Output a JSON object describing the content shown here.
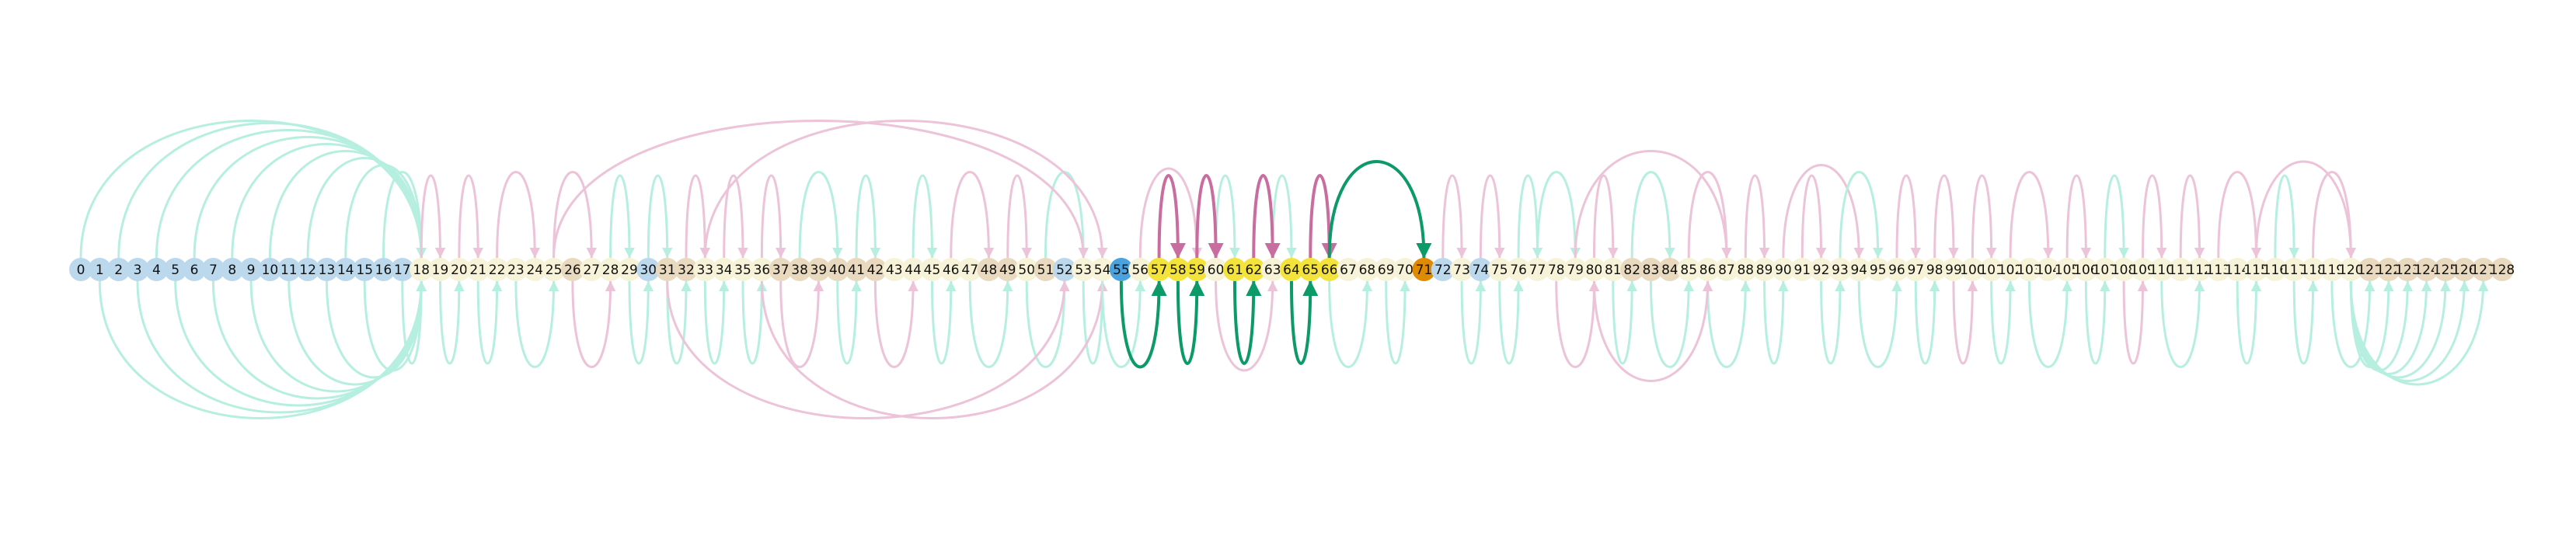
{
  "diagram": {
    "type": "arc-diagram",
    "node_labels": [
      "0",
      "1",
      "2",
      "3",
      "4",
      "5",
      "6",
      "7",
      "8",
      "9",
      "10",
      "11",
      "12",
      "13",
      "14",
      "15",
      "16",
      "17",
      "18",
      "19",
      "20",
      "21",
      "22",
      "23",
      "24",
      "25",
      "26",
      "27",
      "28",
      "29",
      "30",
      "31",
      "32",
      "33",
      "34",
      "35",
      "36",
      "37",
      "38",
      "39",
      "40",
      "41",
      "42",
      "43",
      "44",
      "45",
      "46",
      "47",
      "48",
      "49",
      "50",
      "51",
      "52",
      "53",
      "54",
      "55",
      "56",
      "57",
      "58",
      "59",
      "60",
      "61",
      "62",
      "63",
      "64",
      "65",
      "66",
      "67",
      "68",
      "69",
      "70",
      "71",
      "72",
      "73",
      "74",
      "75",
      "76",
      "77",
      "78",
      "79",
      "80",
      "81",
      "82",
      "83",
      "84",
      "85",
      "86",
      "87",
      "88",
      "89",
      "90",
      "91",
      "92",
      "93",
      "94",
      "95",
      "96",
      "97",
      "98",
      "99",
      "100",
      "101",
      "102",
      "103",
      "104",
      "105",
      "106",
      "107",
      "108",
      "109",
      "110",
      "111",
      "112",
      "113",
      "114",
      "115",
      "116",
      "117",
      "118",
      "119",
      "120",
      "121",
      "122",
      "123",
      "124",
      "125",
      "126",
      "127",
      "128"
    ],
    "node_colors": {
      "blue_light": "#bcd8ec",
      "blue_focus": "#4aa3df",
      "cream": "#f7f3d8",
      "tan": "#e8d9bf",
      "yellow": "#f3e33a",
      "orange": "#e08a00"
    },
    "node_groups": {
      "blue_light": [
        0,
        1,
        2,
        3,
        4,
        5,
        6,
        7,
        8,
        9,
        10,
        11,
        12,
        13,
        14,
        15,
        16,
        17,
        30,
        52,
        72,
        74
      ],
      "blue_focus": [
        55
      ],
      "yellow": [
        57,
        58,
        59,
        61,
        62,
        64,
        65,
        66
      ],
      "orange": [
        71
      ],
      "tan": [
        26,
        31,
        32,
        37,
        38,
        39,
        40,
        41,
        42,
        48,
        49,
        51,
        82,
        83,
        84,
        121,
        122,
        123,
        124,
        125,
        126,
        127,
        128
      ]
    },
    "edge_colors": {
      "faint_green": "#b6efdf",
      "faint_pink": "#ecc3d8",
      "strong_green": "#0c9a68",
      "strong_pink": "#c96c9f"
    },
    "highlighted_edges": [
      {
        "from": 57,
        "to": 58,
        "side": "above",
        "color": "strong_pink"
      },
      {
        "from": 59,
        "to": 60,
        "side": "above",
        "color": "strong_pink"
      },
      {
        "from": 62,
        "to": 63,
        "side": "above",
        "color": "strong_pink"
      },
      {
        "from": 65,
        "to": 66,
        "side": "above",
        "color": "strong_pink"
      },
      {
        "from": 66,
        "to": 71,
        "side": "above",
        "color": "strong_green"
      },
      {
        "from": 55,
        "to": 57,
        "side": "below",
        "color": "strong_green"
      },
      {
        "from": 58,
        "to": 59,
        "side": "below",
        "color": "strong_green"
      },
      {
        "from": 61,
        "to": 62,
        "side": "below",
        "color": "strong_green"
      },
      {
        "from": 64,
        "to": 65,
        "side": "below",
        "color": "strong_green"
      }
    ],
    "background_edges": [
      {
        "from": 0,
        "to": 18,
        "side": "above",
        "color": "faint_green"
      },
      {
        "from": 2,
        "to": 18,
        "side": "above",
        "color": "faint_green"
      },
      {
        "from": 4,
        "to": 18,
        "side": "above",
        "color": "faint_green"
      },
      {
        "from": 6,
        "to": 18,
        "side": "above",
        "color": "faint_green"
      },
      {
        "from": 8,
        "to": 18,
        "side": "above",
        "color": "faint_green"
      },
      {
        "from": 10,
        "to": 18,
        "side": "above",
        "color": "faint_green"
      },
      {
        "from": 12,
        "to": 18,
        "side": "above",
        "color": "faint_green"
      },
      {
        "from": 14,
        "to": 18,
        "side": "above",
        "color": "faint_green"
      },
      {
        "from": 16,
        "to": 18,
        "side": "above",
        "color": "faint_green"
      },
      {
        "from": 1,
        "to": 18,
        "side": "below",
        "color": "faint_green"
      },
      {
        "from": 3,
        "to": 18,
        "side": "below",
        "color": "faint_green"
      },
      {
        "from": 5,
        "to": 18,
        "side": "below",
        "color": "faint_green"
      },
      {
        "from": 7,
        "to": 18,
        "side": "below",
        "color": "faint_green"
      },
      {
        "from": 9,
        "to": 18,
        "side": "below",
        "color": "faint_green"
      },
      {
        "from": 11,
        "to": 18,
        "side": "below",
        "color": "faint_green"
      },
      {
        "from": 13,
        "to": 18,
        "side": "below",
        "color": "faint_green"
      },
      {
        "from": 15,
        "to": 18,
        "side": "below",
        "color": "faint_green"
      },
      {
        "from": 17,
        "to": 18,
        "side": "below",
        "color": "faint_green"
      },
      {
        "from": 18,
        "to": 19,
        "side": "above",
        "color": "faint_pink"
      },
      {
        "from": 20,
        "to": 21,
        "side": "above",
        "color": "faint_pink"
      },
      {
        "from": 22,
        "to": 24,
        "side": "above",
        "color": "faint_pink"
      },
      {
        "from": 25,
        "to": 27,
        "side": "above",
        "color": "faint_pink"
      },
      {
        "from": 28,
        "to": 29,
        "side": "above",
        "color": "faint_green"
      },
      {
        "from": 30,
        "to": 31,
        "side": "above",
        "color": "faint_green"
      },
      {
        "from": 32,
        "to": 33,
        "side": "above",
        "color": "faint_pink"
      },
      {
        "from": 34,
        "to": 35,
        "side": "above",
        "color": "faint_pink"
      },
      {
        "from": 36,
        "to": 37,
        "side": "above",
        "color": "faint_pink"
      },
      {
        "from": 38,
        "to": 40,
        "side": "above",
        "color": "faint_green"
      },
      {
        "from": 41,
        "to": 42,
        "side": "above",
        "color": "faint_green"
      },
      {
        "from": 44,
        "to": 45,
        "side": "above",
        "color": "faint_green"
      },
      {
        "from": 46,
        "to": 48,
        "side": "above",
        "color": "faint_pink"
      },
      {
        "from": 49,
        "to": 50,
        "side": "above",
        "color": "faint_pink"
      },
      {
        "from": 51,
        "to": 53,
        "side": "above",
        "color": "faint_green"
      },
      {
        "from": 25,
        "to": 53,
        "side": "above",
        "color": "faint_pink"
      },
      {
        "from": 33,
        "to": 54,
        "side": "above",
        "color": "faint_pink"
      },
      {
        "from": 19,
        "to": 20,
        "side": "below",
        "color": "faint_green"
      },
      {
        "from": 21,
        "to": 22,
        "side": "below",
        "color": "faint_green"
      },
      {
        "from": 23,
        "to": 25,
        "side": "below",
        "color": "faint_green"
      },
      {
        "from": 26,
        "to": 28,
        "side": "below",
        "color": "faint_pink"
      },
      {
        "from": 29,
        "to": 30,
        "side": "below",
        "color": "faint_green"
      },
      {
        "from": 31,
        "to": 32,
        "side": "below",
        "color": "faint_green"
      },
      {
        "from": 33,
        "to": 34,
        "side": "below",
        "color": "faint_green"
      },
      {
        "from": 35,
        "to": 36,
        "side": "below",
        "color": "faint_green"
      },
      {
        "from": 37,
        "to": 39,
        "side": "below",
        "color": "faint_pink"
      },
      {
        "from": 40,
        "to": 41,
        "side": "below",
        "color": "faint_green"
      },
      {
        "from": 42,
        "to": 44,
        "side": "below",
        "color": "faint_pink"
      },
      {
        "from": 45,
        "to": 46,
        "side": "below",
        "color": "faint_green"
      },
      {
        "from": 47,
        "to": 49,
        "side": "below",
        "color": "faint_green"
      },
      {
        "from": 50,
        "to": 52,
        "side": "below",
        "color": "faint_green"
      },
      {
        "from": 53,
        "to": 54,
        "side": "below",
        "color": "faint_green"
      },
      {
        "from": 31,
        "to": 52,
        "side": "below",
        "color": "faint_pink"
      },
      {
        "from": 36,
        "to": 54,
        "side": "below",
        "color": "faint_pink"
      },
      {
        "from": 56,
        "to": 59,
        "side": "above",
        "color": "faint_pink"
      },
      {
        "from": 60,
        "to": 61,
        "side": "above",
        "color": "faint_green"
      },
      {
        "from": 63,
        "to": 64,
        "side": "above",
        "color": "faint_green"
      },
      {
        "from": 54,
        "to": 56,
        "side": "below",
        "color": "faint_green"
      },
      {
        "from": 60,
        "to": 63,
        "side": "below",
        "color": "faint_pink"
      },
      {
        "from": 66,
        "to": 68,
        "side": "below",
        "color": "faint_green"
      },
      {
        "from": 69,
        "to": 70,
        "side": "below",
        "color": "faint_green"
      },
      {
        "from": 72,
        "to": 73,
        "side": "above",
        "color": "faint_pink"
      },
      {
        "from": 74,
        "to": 75,
        "side": "above",
        "color": "faint_pink"
      },
      {
        "from": 76,
        "to": 77,
        "side": "above",
        "color": "faint_green"
      },
      {
        "from": 77,
        "to": 79,
        "side": "above",
        "color": "faint_green"
      },
      {
        "from": 80,
        "to": 81,
        "side": "above",
        "color": "faint_pink"
      },
      {
        "from": 82,
        "to": 84,
        "side": "above",
        "color": "faint_green"
      },
      {
        "from": 85,
        "to": 87,
        "side": "above",
        "color": "faint_pink"
      },
      {
        "from": 79,
        "to": 87,
        "side": "above",
        "color": "faint_pink"
      },
      {
        "from": 88,
        "to": 89,
        "side": "above",
        "color": "faint_pink"
      },
      {
        "from": 90,
        "to": 94,
        "side": "above",
        "color": "faint_pink"
      },
      {
        "from": 91,
        "to": 92,
        "side": "above",
        "color": "faint_pink"
      },
      {
        "from": 93,
        "to": 95,
        "side": "above",
        "color": "faint_green"
      },
      {
        "from": 96,
        "to": 97,
        "side": "above",
        "color": "faint_pink"
      },
      {
        "from": 98,
        "to": 99,
        "side": "above",
        "color": "faint_pink"
      },
      {
        "from": 100,
        "to": 101,
        "side": "above",
        "color": "faint_pink"
      },
      {
        "from": 102,
        "to": 104,
        "side": "above",
        "color": "faint_pink"
      },
      {
        "from": 105,
        "to": 106,
        "side": "above",
        "color": "faint_pink"
      },
      {
        "from": 107,
        "to": 108,
        "side": "above",
        "color": "faint_green"
      },
      {
        "from": 109,
        "to": 110,
        "side": "above",
        "color": "faint_pink"
      },
      {
        "from": 111,
        "to": 112,
        "side": "above",
        "color": "faint_pink"
      },
      {
        "from": 113,
        "to": 115,
        "side": "above",
        "color": "faint_pink"
      },
      {
        "from": 116,
        "to": 117,
        "side": "above",
        "color": "faint_green"
      },
      {
        "from": 118,
        "to": 120,
        "side": "above",
        "color": "faint_pink"
      },
      {
        "from": 115,
        "to": 120,
        "side": "above",
        "color": "faint_pink"
      },
      {
        "from": 73,
        "to": 74,
        "side": "below",
        "color": "faint_green"
      },
      {
        "from": 75,
        "to": 76,
        "side": "below",
        "color": "faint_green"
      },
      {
        "from": 78,
        "to": 80,
        "side": "below",
        "color": "faint_pink"
      },
      {
        "from": 81,
        "to": 82,
        "side": "below",
        "color": "faint_green"
      },
      {
        "from": 83,
        "to": 85,
        "side": "below",
        "color": "faint_green"
      },
      {
        "from": 86,
        "to": 88,
        "side": "below",
        "color": "faint_green"
      },
      {
        "from": 80,
        "to": 86,
        "side": "below",
        "color": "faint_pink"
      },
      {
        "from": 89,
        "to": 90,
        "side": "below",
        "color": "faint_green"
      },
      {
        "from": 92,
        "to": 93,
        "side": "below",
        "color": "faint_green"
      },
      {
        "from": 94,
        "to": 96,
        "side": "below",
        "color": "faint_green"
      },
      {
        "from": 97,
        "to": 98,
        "side": "below",
        "color": "faint_green"
      },
      {
        "from": 99,
        "to": 100,
        "side": "below",
        "color": "faint_pink"
      },
      {
        "from": 101,
        "to": 102,
        "side": "below",
        "color": "faint_green"
      },
      {
        "from": 103,
        "to": 105,
        "side": "below",
        "color": "faint_green"
      },
      {
        "from": 106,
        "to": 107,
        "side": "below",
        "color": "faint_green"
      },
      {
        "from": 108,
        "to": 109,
        "side": "below",
        "color": "faint_pink"
      },
      {
        "from": 110,
        "to": 112,
        "side": "below",
        "color": "faint_green"
      },
      {
        "from": 114,
        "to": 115,
        "side": "below",
        "color": "faint_green"
      },
      {
        "from": 117,
        "to": 118,
        "side": "below",
        "color": "faint_green"
      },
      {
        "from": 119,
        "to": 121,
        "side": "below",
        "color": "faint_green"
      },
      {
        "from": 120,
        "to": 122,
        "side": "below",
        "color": "faint_green"
      },
      {
        "from": 120,
        "to": 123,
        "side": "below",
        "color": "faint_green"
      },
      {
        "from": 120,
        "to": 124,
        "side": "below",
        "color": "faint_green"
      },
      {
        "from": 120,
        "to": 125,
        "side": "below",
        "color": "faint_green"
      },
      {
        "from": 120,
        "to": 126,
        "side": "below",
        "color": "faint_green"
      },
      {
        "from": 120,
        "to": 127,
        "side": "below",
        "color": "faint_green"
      }
    ]
  }
}
